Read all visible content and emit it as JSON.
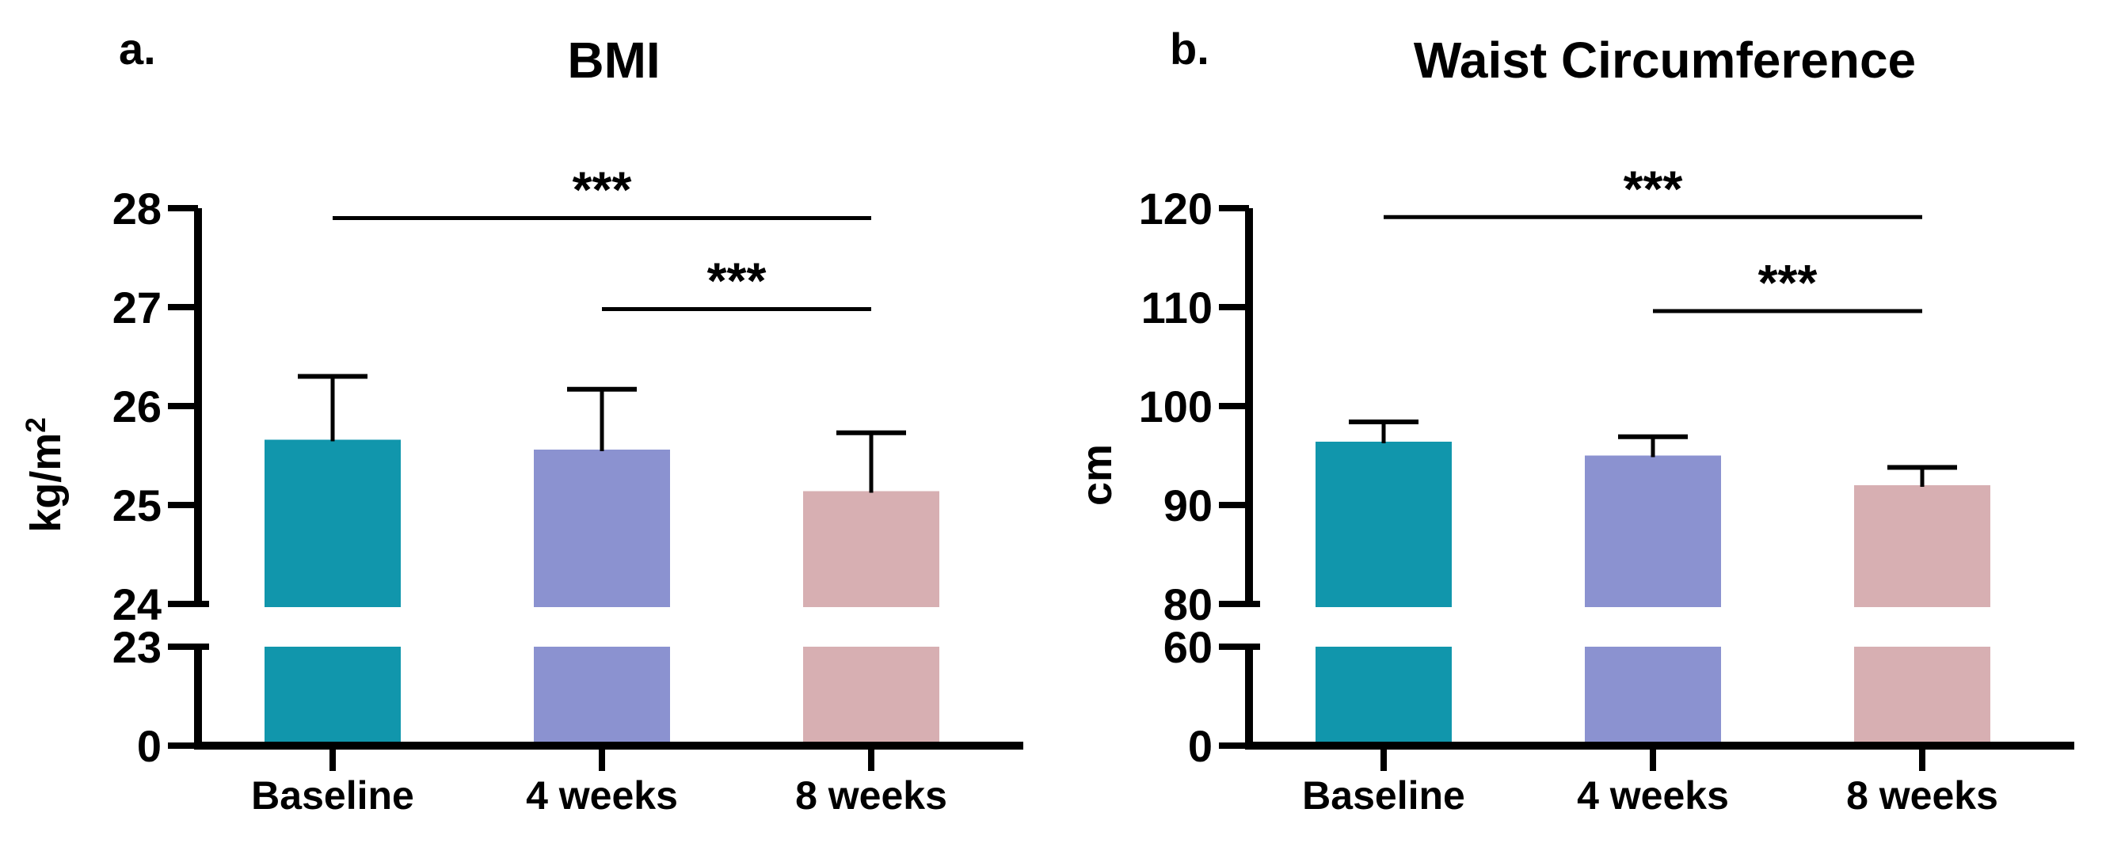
{
  "chart_data": [
    {
      "type": "bar",
      "panel_label": "a.",
      "title": "BMI",
      "ylabel": "kg/m²",
      "ylabel_base": "kg/m",
      "ylabel_sup": "2",
      "categories": [
        "Baseline",
        "4 weeks",
        "8 weeks"
      ],
      "values": [
        25.66,
        25.56,
        25.14
      ],
      "error_tops": [
        26.3,
        26.17,
        25.73
      ],
      "bar_colors": [
        "#1196AC",
        "#8B92D0",
        "#D7AFB2"
      ],
      "axis_break": true,
      "upper_axis": {
        "min": 24,
        "max": 28,
        "ticks": [
          28,
          27,
          26,
          25,
          24
        ]
      },
      "lower_axis": {
        "ticks": [
          23,
          0
        ]
      },
      "significance": [
        {
          "from": 0,
          "to": 2,
          "label": "***",
          "y": 27.9
        },
        {
          "from": 1,
          "to": 2,
          "label": "***",
          "y": 26.98
        }
      ],
      "grid": false,
      "legend": "none"
    },
    {
      "type": "bar",
      "panel_label": "b.",
      "title": "Waist Circumference",
      "ylabel": "cm",
      "ylabel_base": "cm",
      "ylabel_sup": "",
      "categories": [
        "Baseline",
        "4 weeks",
        "8 weeks"
      ],
      "values": [
        96.4,
        95.0,
        92.0
      ],
      "error_tops": [
        98.4,
        96.9,
        93.8
      ],
      "bar_colors": [
        "#1196AC",
        "#8B92D0",
        "#D7AFB2"
      ],
      "axis_break": true,
      "upper_axis": {
        "min": 80,
        "max": 120,
        "ticks": [
          120,
          110,
          100,
          90,
          80
        ]
      },
      "lower_axis": {
        "ticks": [
          60,
          0
        ]
      },
      "significance": [
        {
          "from": 0,
          "to": 2,
          "label": "***",
          "y": 119.1
        },
        {
          "from": 1,
          "to": 2,
          "label": "***",
          "y": 109.6
        }
      ],
      "grid": false,
      "legend": "none"
    }
  ]
}
